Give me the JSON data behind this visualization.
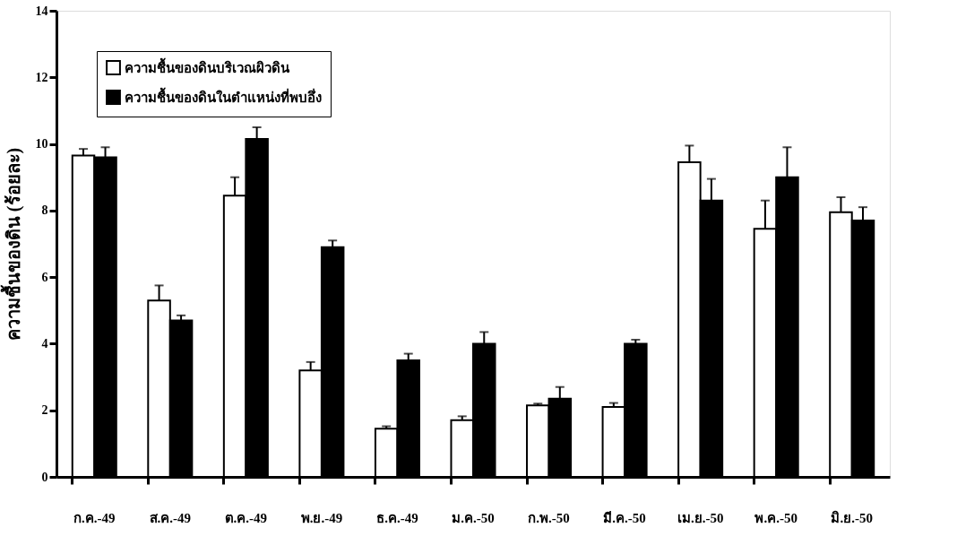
{
  "chart_data": {
    "type": "bar",
    "ylabel": "ความชื้นของดิน (ร้อยละ)",
    "categories": [
      "ก.ค.-49",
      "ส.ค.-49",
      "ต.ค.-49",
      "พ.ย.-49",
      "ธ.ค.-49",
      "ม.ค.-50",
      "ก.พ.-50",
      "มี.ค.-50",
      "เม.ย.-50",
      "พ.ค.-50",
      "มิ.ย.-50"
    ],
    "series": [
      {
        "name": "ความชื้นของดินบริเวณผิวดิน",
        "color": "#ffffff",
        "values": [
          9.65,
          5.3,
          8.45,
          3.2,
          1.45,
          1.7,
          2.15,
          2.1,
          9.45,
          7.45,
          7.95
        ],
        "errors": [
          [
            9.65,
            9.85
          ],
          [
            5.3,
            5.75
          ],
          [
            8.45,
            9.0
          ],
          [
            3.2,
            3.45
          ],
          [
            1.45,
            1.52
          ],
          [
            1.7,
            1.82
          ],
          [
            2.15,
            2.2
          ],
          [
            2.1,
            2.22
          ],
          [
            9.45,
            9.95
          ],
          [
            7.45,
            8.3
          ],
          [
            7.95,
            8.4
          ]
        ]
      },
      {
        "name": "ความชื้นของดินในตำแหน่งที่พบอึ่ง",
        "color": "#000000",
        "values": [
          9.6,
          4.7,
          10.15,
          6.9,
          3.5,
          4.0,
          2.35,
          4.0,
          8.3,
          9.0,
          7.7
        ],
        "errors": [
          [
            9.6,
            9.9
          ],
          [
            4.7,
            4.85
          ],
          [
            10.15,
            10.5
          ],
          [
            6.9,
            7.1
          ],
          [
            3.5,
            3.7
          ],
          [
            4.0,
            4.35
          ],
          [
            2.35,
            2.7
          ],
          [
            4.0,
            4.12
          ],
          [
            8.3,
            8.95
          ],
          [
            9.0,
            9.9
          ],
          [
            7.7,
            8.1
          ]
        ]
      }
    ],
    "ylim": [
      0,
      14
    ],
    "yticks": [
      0,
      2,
      4,
      6,
      8,
      10,
      12,
      14
    ],
    "grid": false,
    "legend": "top left"
  }
}
